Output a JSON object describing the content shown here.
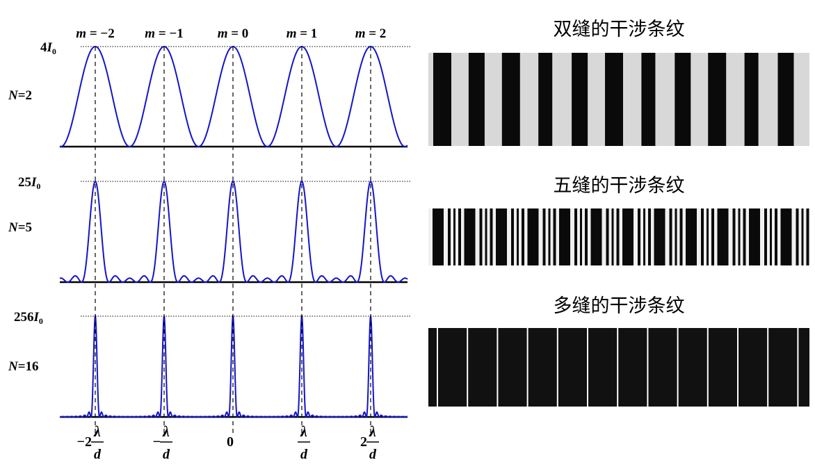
{
  "panels": [
    {
      "n_label": "N=2",
      "n": 2,
      "peak_label": "4I₀",
      "peak_coef": "4",
      "peak_value": 4
    },
    {
      "n_label": "N=5",
      "n": 5,
      "peak_label": "25I₀",
      "peak_coef": "25",
      "peak_value": 25
    },
    {
      "n_label": "N=16",
      "n": 16,
      "peak_label": "256I₀",
      "peak_coef": "256",
      "peak_value": 256
    }
  ],
  "orders": [
    "m = −2",
    "m = −1",
    "m = 0",
    "m = 1",
    "m = 2"
  ],
  "x_ticks": [
    "−2λ/d",
    "−λ/d",
    "0",
    "λ/d",
    "2λ/d"
  ],
  "x_tick_parts": [
    {
      "prefix": "−2",
      "frac": true
    },
    {
      "prefix": "−",
      "frac": true
    },
    {
      "prefix": "0",
      "frac": false
    },
    {
      "prefix": "",
      "frac": true
    },
    {
      "prefix": "2",
      "frac": true
    }
  ],
  "symbols": {
    "lambda": "λ",
    "d": "d",
    "m": "m",
    "N": "N",
    "I": "I",
    "sub0": "0"
  },
  "fringes": [
    {
      "title": "双缝的干涉条纹",
      "type": "double"
    },
    {
      "title": "五缝的干涉条纹",
      "type": "five"
    },
    {
      "title": "多缝的干涉条纹",
      "type": "many"
    }
  ],
  "colors": {
    "curve": "#1414c8",
    "axis": "#000000",
    "fringe_dark": "#0a0a0a",
    "fringe_light": "#f0f0f0"
  }
}
